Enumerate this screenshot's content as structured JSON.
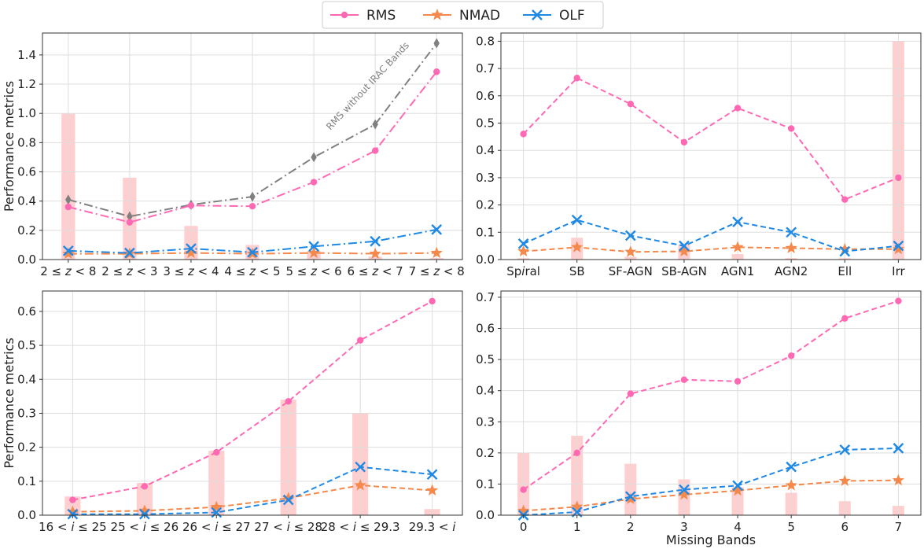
{
  "legend": [
    {
      "label": "RMS",
      "color": "#ff69b4",
      "marker": "circle"
    },
    {
      "label": "NMAD",
      "color": "#f4894b",
      "marker": "star"
    },
    {
      "label": "OLF",
      "color": "#1e88e5",
      "marker": "x"
    }
  ],
  "chart_data": [
    {
      "type": "line",
      "panel": "top-left",
      "categories": [
        "2 ≤ z < 8",
        "2 ≤ z < 3",
        "3 ≤ z < 4",
        "4 ≤ z < 5",
        "5 ≤ z < 6",
        "6 ≤ z < 7",
        "7 ≤ z < 8"
      ],
      "ylabel": "Performance metrics",
      "xlabel": "",
      "ylim": [
        0,
        1.55
      ],
      "yticks": [
        0,
        0.2,
        0.4,
        0.6,
        0.8,
        1.0,
        1.2,
        1.4
      ],
      "ytick_labels": [
        "0.0",
        "0.2",
        "0.4",
        "0.6",
        "0.8",
        "1.0",
        "1.2",
        "1.4"
      ],
      "dash": "dashdot",
      "bars": [
        1.0,
        0.56,
        0.23,
        0.1,
        0.06,
        0.02,
        0.01
      ],
      "series": [
        {
          "name": "RMS without IRAC Bands",
          "color": "#808080",
          "marker": "diamond",
          "values": [
            0.41,
            0.295,
            0.375,
            0.43,
            0.7,
            0.925,
            1.48
          ]
        },
        {
          "name": "RMS",
          "color": "#ff69b4",
          "marker": "circle",
          "values": [
            0.36,
            0.255,
            0.37,
            0.365,
            0.53,
            0.745,
            1.285
          ]
        },
        {
          "name": "NMAD",
          "color": "#f4894b",
          "marker": "star",
          "values": [
            0.04,
            0.04,
            0.045,
            0.04,
            0.045,
            0.04,
            0.045
          ]
        },
        {
          "name": "OLF",
          "color": "#1e88e5",
          "marker": "x",
          "values": [
            0.06,
            0.045,
            0.075,
            0.05,
            0.09,
            0.125,
            0.205
          ]
        }
      ],
      "annotation": "RMS without IRAC Bands"
    },
    {
      "type": "line",
      "panel": "top-right",
      "categories": [
        "Spiral",
        "SB",
        "SF-AGN",
        "SB-AGN",
        "AGN1",
        "AGN2",
        "Ell",
        "Irr"
      ],
      "ylabel": "",
      "xlabel": "",
      "ylim": [
        0,
        0.83
      ],
      "yticks": [
        0,
        0.1,
        0.2,
        0.3,
        0.4,
        0.5,
        0.6,
        0.7,
        0.8
      ],
      "ytick_labels": [
        "0.0",
        "0.1",
        "0.2",
        "0.3",
        "0.4",
        "0.5",
        "0.6",
        "0.7",
        "0.8"
      ],
      "dash": "dashed",
      "bars": [
        0.005,
        0.08,
        0.01,
        0.055,
        0.02,
        0.005,
        0.005,
        0.8
      ],
      "series": [
        {
          "name": "RMS",
          "color": "#ff69b4",
          "marker": "circle",
          "values": [
            0.46,
            0.665,
            0.57,
            0.43,
            0.555,
            0.48,
            0.22,
            0.3
          ]
        },
        {
          "name": "NMAD",
          "color": "#f4894b",
          "marker": "star",
          "values": [
            0.03,
            0.045,
            0.028,
            0.03,
            0.045,
            0.042,
            0.038,
            0.038
          ]
        },
        {
          "name": "OLF",
          "color": "#1e88e5",
          "marker": "x",
          "values": [
            0.058,
            0.145,
            0.088,
            0.05,
            0.138,
            0.1,
            0.03,
            0.05
          ]
        }
      ]
    },
    {
      "type": "line",
      "panel": "bottom-left",
      "categories": [
        "16 < i ≤ 25",
        "25 < i ≤ 26",
        "26 < i ≤ 27",
        "27 < i ≤ 28",
        "28 < i ≤ 29.3",
        "29.3 < i"
      ],
      "ylabel": "Performance metrics",
      "xlabel": "",
      "ylim": [
        0,
        0.66
      ],
      "yticks": [
        0,
        0.1,
        0.2,
        0.3,
        0.4,
        0.5,
        0.6
      ],
      "ytick_labels": [
        "0.0",
        "0.1",
        "0.2",
        "0.3",
        "0.4",
        "0.5",
        "0.6"
      ],
      "dash": "dashed",
      "bars": [
        0.055,
        0.095,
        0.19,
        0.34,
        0.3,
        0.018
      ],
      "series": [
        {
          "name": "RMS",
          "color": "#ff69b4",
          "marker": "circle",
          "values": [
            0.045,
            0.085,
            0.185,
            0.335,
            0.515,
            0.63
          ]
        },
        {
          "name": "NMAD",
          "color": "#f4894b",
          "marker": "star",
          "values": [
            0.01,
            0.013,
            0.024,
            0.05,
            0.088,
            0.073
          ]
        },
        {
          "name": "OLF",
          "color": "#1e88e5",
          "marker": "x",
          "values": [
            0.003,
            0.003,
            0.008,
            0.045,
            0.142,
            0.12
          ]
        }
      ]
    },
    {
      "type": "line",
      "panel": "bottom-right",
      "categories": [
        "0",
        "1",
        "2",
        "3",
        "4",
        "5",
        "6",
        "7"
      ],
      "ylabel": "",
      "xlabel": "Missing Bands",
      "ylim": [
        0,
        0.72
      ],
      "yticks": [
        0,
        0.1,
        0.2,
        0.3,
        0.4,
        0.5,
        0.6,
        0.7
      ],
      "ytick_labels": [
        "0.0",
        "0.1",
        "0.2",
        "0.3",
        "0.4",
        "0.5",
        "0.6",
        "0.7"
      ],
      "dash": "dashed",
      "bars": [
        0.2,
        0.255,
        0.165,
        0.115,
        0.09,
        0.072,
        0.045,
        0.03
      ],
      "series": [
        {
          "name": "RMS",
          "color": "#ff69b4",
          "marker": "circle",
          "values": [
            0.082,
            0.2,
            0.39,
            0.435,
            0.43,
            0.512,
            0.632,
            0.688
          ]
        },
        {
          "name": "NMAD",
          "color": "#f4894b",
          "marker": "star",
          "values": [
            0.014,
            0.027,
            0.052,
            0.066,
            0.079,
            0.096,
            0.11,
            0.112
          ]
        },
        {
          "name": "OLF",
          "color": "#1e88e5",
          "marker": "x",
          "values": [
            0.0,
            0.01,
            0.06,
            0.082,
            0.095,
            0.155,
            0.21,
            0.215
          ]
        }
      ]
    }
  ]
}
